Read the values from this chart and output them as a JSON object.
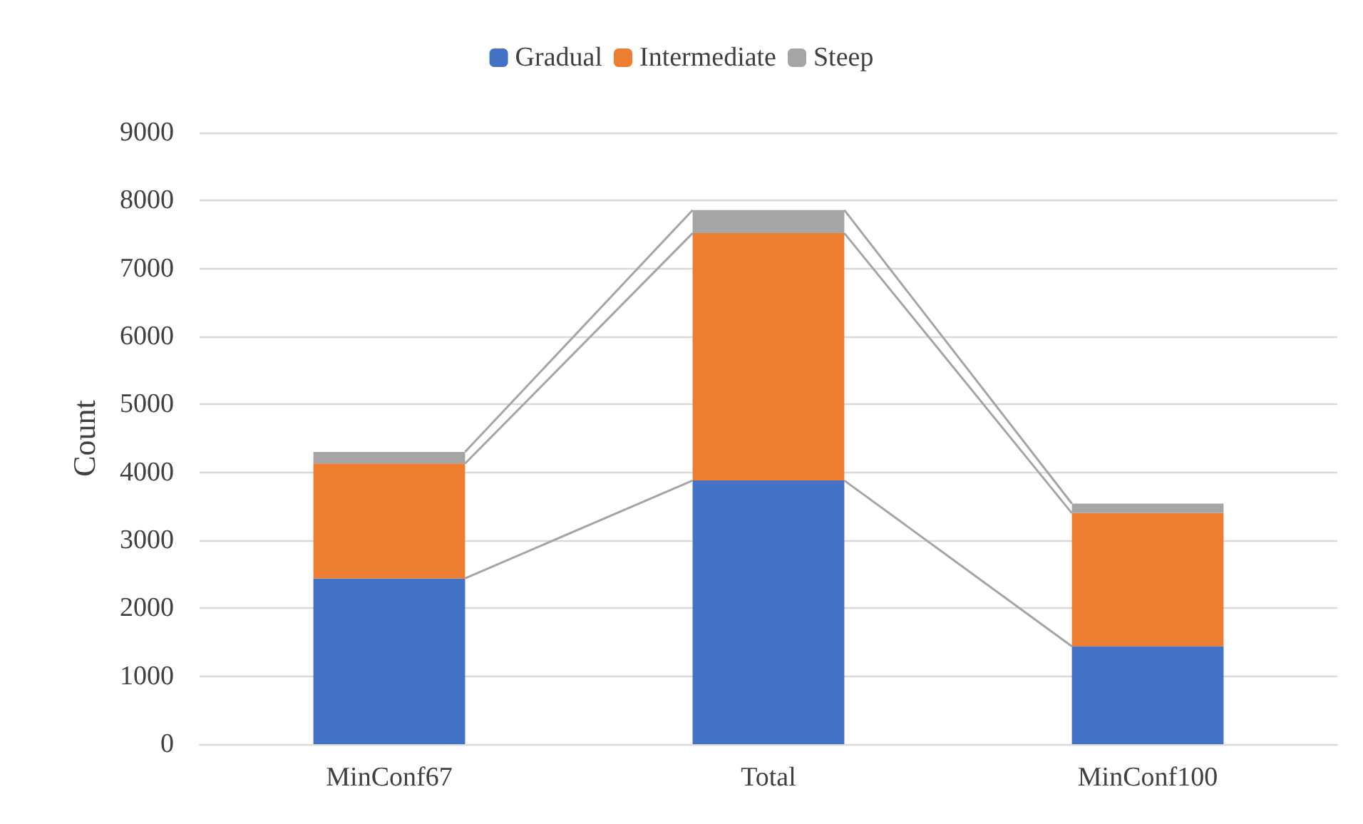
{
  "chart_data": {
    "type": "bar",
    "stacked": true,
    "ylabel": "Count",
    "categories": [
      "MinConf67",
      "Total",
      "MinConf100"
    ],
    "series": [
      {
        "name": "Gradual",
        "color": "#4472c4",
        "values": [
          2440,
          3880,
          1440
        ]
      },
      {
        "name": "Intermediate",
        "color": "#ed7d31",
        "values": [
          1690,
          3640,
          1960
        ]
      },
      {
        "name": "Steep",
        "color": "#a5a5a5",
        "values": [
          170,
          340,
          140
        ]
      }
    ],
    "ylim": [
      0,
      9000
    ],
    "yticks": [
      0,
      1000,
      2000,
      3000,
      4000,
      5000,
      6000,
      7000,
      8000,
      9000
    ],
    "grid": "y",
    "legend": "top"
  }
}
